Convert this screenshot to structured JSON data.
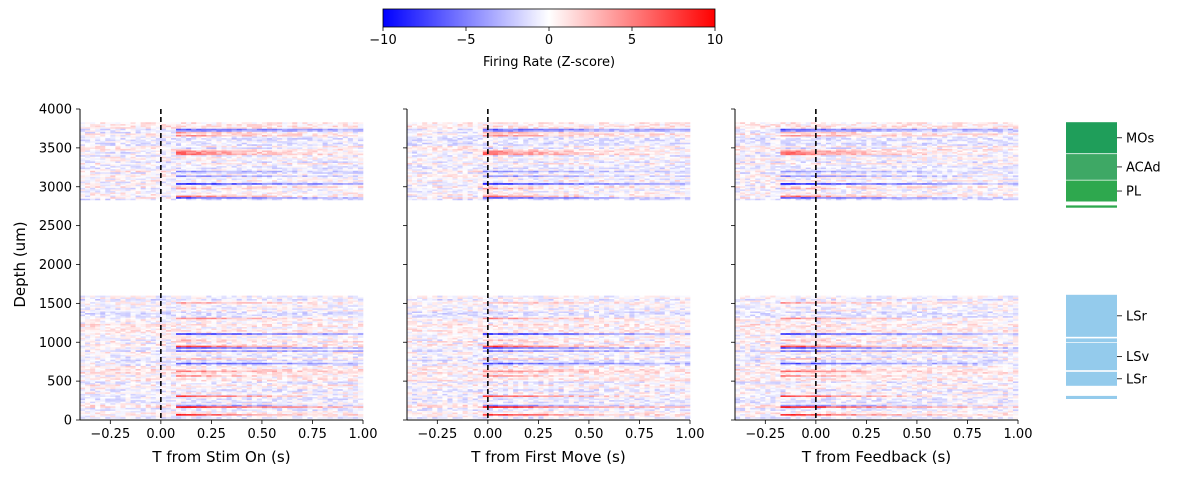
{
  "colorbar": {
    "label": "Firing Rate (Z-score)",
    "ticks": [
      "−10",
      "−5",
      "0",
      "5",
      "10"
    ],
    "range": [
      -10,
      10
    ],
    "low_color": "#0000ff",
    "mid_color": "#ffffff",
    "high_color": "#ff0000"
  },
  "chart_data": [
    {
      "type": "heatmap",
      "title": "",
      "xlabel": "T from Stim On (s)",
      "ylabel": "Depth (um)",
      "xlim": [
        -0.4,
        1.0
      ],
      "ylim": [
        0,
        4000
      ],
      "xticks": [
        "−0.25",
        "0.00",
        "0.25",
        "0.50",
        "0.75",
        "1.00"
      ],
      "yticks": [
        "0",
        "500",
        "1000",
        "1500",
        "2000",
        "2500",
        "3000",
        "3500",
        "4000"
      ],
      "event_line_x": 0,
      "event_line_style": "dashed black",
      "value_scale": "Firing Rate (Z-score)",
      "recorded_depth_ranges": [
        [
          20,
          1600
        ],
        [
          2830,
          3820
        ]
      ],
      "color_range": [
        -10,
        10
      ]
    },
    {
      "type": "heatmap",
      "title": "",
      "xlabel": "T from First Move (s)",
      "ylabel": "",
      "xlim": [
        -0.4,
        1.0
      ],
      "ylim": [
        0,
        4000
      ],
      "xticks": [
        "−0.25",
        "0.00",
        "0.25",
        "0.50",
        "0.75",
        "1.00"
      ],
      "yticks": [],
      "event_line_x": 0,
      "event_line_style": "dashed black",
      "value_scale": "Firing Rate (Z-score)",
      "recorded_depth_ranges": [
        [
          20,
          1600
        ],
        [
          2830,
          3820
        ]
      ],
      "color_range": [
        -10,
        10
      ]
    },
    {
      "type": "heatmap",
      "title": "",
      "xlabel": "T from Feedback (s)",
      "ylabel": "",
      "xlim": [
        -0.4,
        1.0
      ],
      "ylim": [
        0,
        4000
      ],
      "xticks": [
        "−0.25",
        "0.00",
        "0.25",
        "0.50",
        "0.75",
        "1.00"
      ],
      "yticks": [],
      "event_line_x": 0,
      "event_line_style": "dashed black",
      "value_scale": "Firing Rate (Z-score)",
      "recorded_depth_ranges": [
        [
          20,
          1600
        ],
        [
          2830,
          3820
        ]
      ],
      "color_range": [
        -10,
        10
      ]
    }
  ],
  "regions": [
    {
      "label": "MOs",
      "depth_range": [
        3430,
        3830
      ],
      "color": "#1f9e5a"
    },
    {
      "label": "ACAd",
      "depth_range": [
        3090,
        3420
      ],
      "color": "#3ea865"
    },
    {
      "label": "PL",
      "depth_range": [
        2810,
        3080
      ],
      "color": "#2ea84e"
    },
    {
      "label": "",
      "depth_range": [
        2730,
        2760
      ],
      "color": "#2ea84e"
    },
    {
      "label": "LSr",
      "depth_range": [
        1070,
        1610
      ],
      "color": "#94cbec"
    },
    {
      "label": "",
      "depth_range": [
        1000,
        1050
      ],
      "color": "#94cbec"
    },
    {
      "label": "LSv",
      "depth_range": [
        640,
        990
      ],
      "color": "#94cbec"
    },
    {
      "label": "LSr",
      "depth_range": [
        440,
        620
      ],
      "color": "#94cbec"
    },
    {
      "label": "",
      "depth_range": [
        270,
        310
      ],
      "color": "#94cbec"
    }
  ]
}
